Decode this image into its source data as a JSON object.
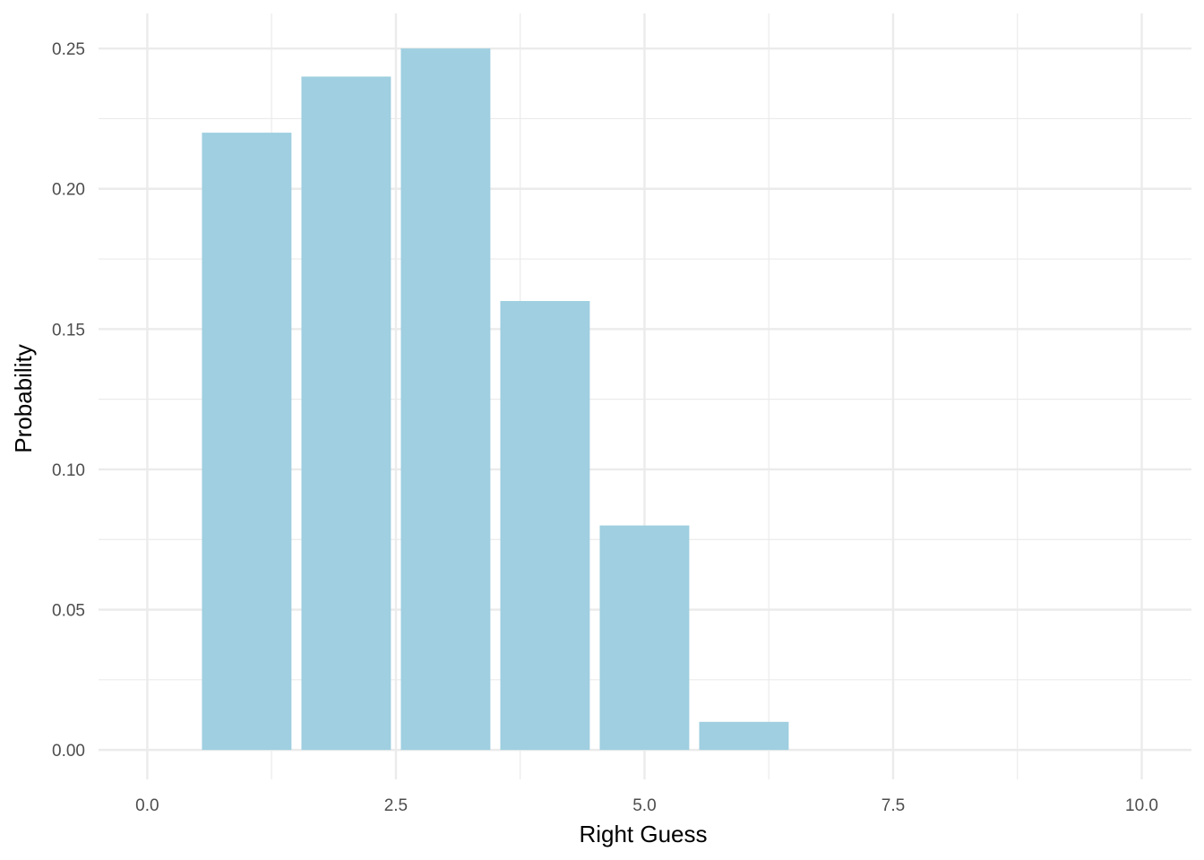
{
  "chart_data": {
    "type": "bar",
    "title": "",
    "xlabel": "Right Guess",
    "ylabel": "Probability",
    "x": [
      1,
      2,
      3,
      4,
      5,
      6
    ],
    "values": [
      0.22,
      0.24,
      0.25,
      0.16,
      0.08,
      0.01
    ],
    "xlim": [
      -0.49,
      10.5
    ],
    "ylim": [
      -0.0105,
      0.2625
    ],
    "xticks": [
      0,
      2.5,
      5,
      7.5,
      10
    ],
    "xtick_labels": [
      "0.0",
      "2.5",
      "5.0",
      "7.5",
      "10.0"
    ],
    "yticks": [
      0,
      0.05,
      0.1,
      0.15,
      0.2,
      0.25
    ],
    "ytick_labels": [
      "0.00",
      "0.05",
      "0.10",
      "0.15",
      "0.20",
      "0.25"
    ],
    "grid": true,
    "bar_color": "#9fcfe0",
    "grid_color": "#ebebeb"
  }
}
